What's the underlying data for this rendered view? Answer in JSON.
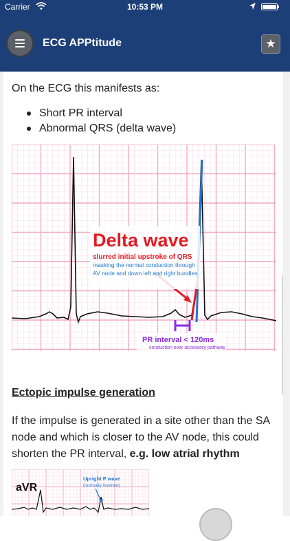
{
  "status": {
    "carrier": "Carrier",
    "time": "10:53 PM"
  },
  "nav": {
    "title": "ECG APPtitude"
  },
  "content": {
    "intro": "On the ECG this manifests as:",
    "bullets": [
      "Short PR interval",
      "Abnormal QRS (delta wave)"
    ],
    "ecg": {
      "delta_title": "Delta wave",
      "delta_sub": "slurred initial upstroke of QRS",
      "delta_desc_1": "masking the normal conduction through",
      "delta_desc_2": "AV node and down left and right bundles",
      "pr_label": "PR interval < 120ms",
      "pr_sub": "conduction over accessory pathway",
      "colors": {
        "grid": "#f2a8c3",
        "grid_minor": "#fbdbe8",
        "trace": "#111111",
        "delta": "#e31b23",
        "blue": "#1d76d2",
        "purple": "#8a2be2"
      }
    },
    "section_heading": "Ectopic impulse generation",
    "paragraph_pre": "If the impulse is generated in a site other than the SA node and which is closer to the AV node, this could shorten the PR interval, ",
    "paragraph_bold": "e.g. low atrial rhythm",
    "avr": {
      "lead": "aVR",
      "note_1": "Upright P wave",
      "note_2": "(normally inverted)"
    }
  }
}
